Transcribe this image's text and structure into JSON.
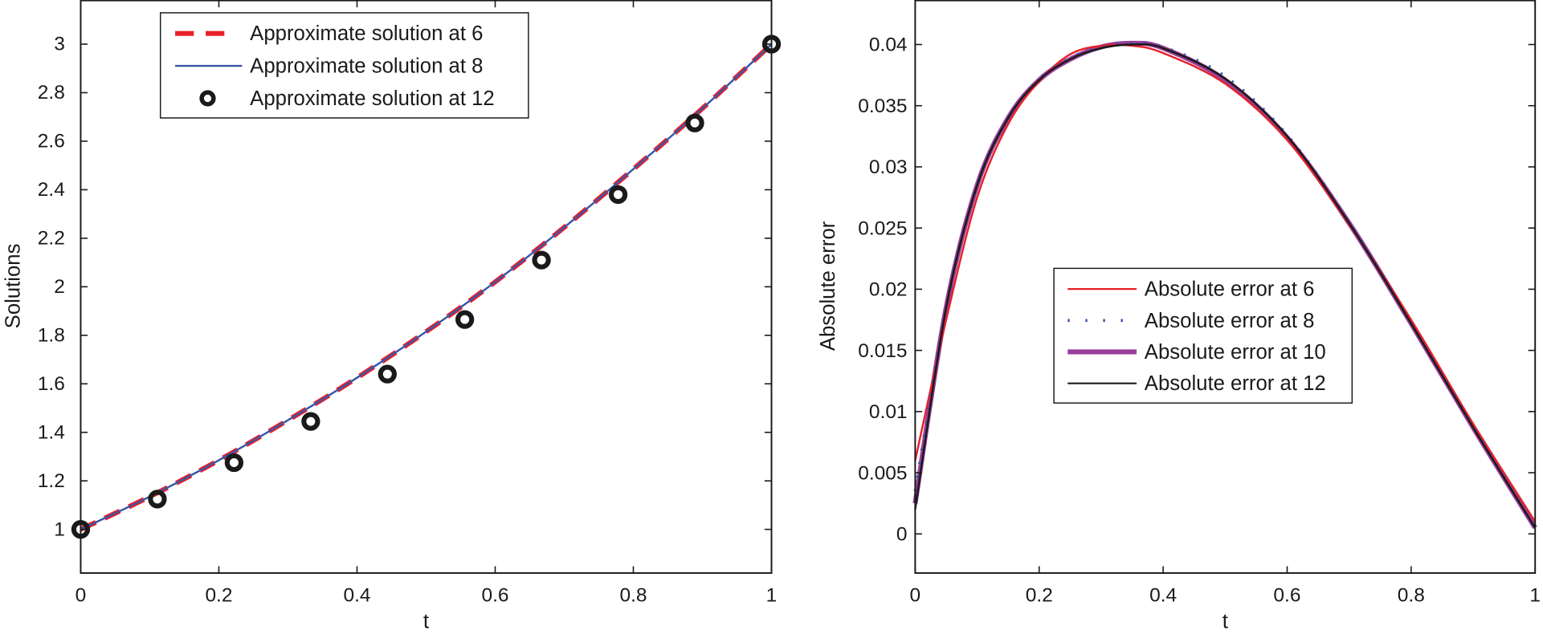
{
  "chart_data": [
    {
      "type": "line",
      "title": "",
      "xlabel": "t",
      "ylabel": "Solutions",
      "xlim": [
        0,
        1
      ],
      "ylim": [
        0.82,
        3.18
      ],
      "grid": false,
      "legend_position": "upper-left-inside",
      "x_ticks": [
        "0",
        "0.2",
        "0.4",
        "0.6",
        "0.8",
        "1"
      ],
      "y_ticks": [
        "1",
        "1.2",
        "1.4",
        "1.6",
        "1.8",
        "2",
        "2.2",
        "2.4",
        "2.6",
        "2.8",
        "3"
      ],
      "legend": [
        "Approximate solution at 6",
        "Approximate solution at 8",
        "Approximate solution at 12"
      ],
      "series": [
        {
          "name": "Approximate solution at 6",
          "style": "dashed",
          "color": "#e8202a",
          "x": [
            0,
            0.1,
            0.2,
            0.3,
            0.4,
            0.5,
            0.6,
            0.7,
            0.8,
            0.9,
            1.0
          ],
          "values": [
            1.0,
            1.135,
            1.285,
            1.45,
            1.625,
            1.815,
            2.02,
            2.245,
            2.485,
            2.735,
            3.0
          ]
        },
        {
          "name": "Approximate solution at 8",
          "style": "solid",
          "color": "#3a56a8",
          "x": [
            0,
            0.1,
            0.2,
            0.3,
            0.4,
            0.5,
            0.6,
            0.7,
            0.8,
            0.9,
            1.0
          ],
          "values": [
            1.0,
            1.135,
            1.285,
            1.45,
            1.625,
            1.815,
            2.02,
            2.245,
            2.485,
            2.735,
            3.0
          ]
        },
        {
          "name": "Approximate solution at 12",
          "style": "marker-circle",
          "color": "#1a1a1a",
          "x": [
            0,
            0.111,
            0.222,
            0.333,
            0.444,
            0.556,
            0.667,
            0.778,
            0.889,
            1.0
          ],
          "values": [
            1.0,
            1.125,
            1.275,
            1.445,
            1.64,
            1.865,
            2.11,
            2.38,
            2.675,
            3.0
          ]
        }
      ]
    },
    {
      "type": "line",
      "title": "",
      "xlabel": "t",
      "ylabel": "Absolute error",
      "xlim": [
        0,
        1
      ],
      "ylim": [
        -0.0032,
        0.0436
      ],
      "grid": false,
      "legend_position": "center-inside",
      "x_ticks": [
        "0",
        "0.2",
        "0.4",
        "0.6",
        "0.8",
        "1"
      ],
      "y_ticks": [
        "0",
        "0.005",
        "0.01",
        "0.015",
        "0.02",
        "0.025",
        "0.03",
        "0.035",
        "0.04"
      ],
      "legend": [
        "Absolute error at 6",
        "Absolute error at 8",
        "Absolute error at 10",
        "Absolute error at 12"
      ],
      "series": [
        {
          "name": "Absolute error at 6",
          "style": "solid",
          "color": "#e8202a",
          "x": [
            0,
            0.05,
            0.1,
            0.15,
            0.2,
            0.25,
            0.3,
            0.35,
            0.4,
            0.5,
            0.6,
            0.7,
            0.8,
            0.9,
            1.0
          ],
          "values": [
            0.006,
            0.0175,
            0.0275,
            0.0335,
            0.037,
            0.0392,
            0.0399,
            0.0399,
            0.0393,
            0.0368,
            0.0322,
            0.0253,
            0.0175,
            0.009,
            0.001
          ]
        },
        {
          "name": "Absolute error at 8",
          "style": "dotted",
          "color": "#3a56a8",
          "x": [
            0,
            0.05,
            0.1,
            0.15,
            0.2,
            0.25,
            0.3,
            0.35,
            0.4,
            0.5,
            0.6,
            0.7,
            0.8,
            0.9,
            1.0
          ],
          "values": [
            0.0035,
            0.0185,
            0.0285,
            0.034,
            0.0372,
            0.0389,
            0.0398,
            0.0401,
            0.0398,
            0.0374,
            0.0326,
            0.0255,
            0.0172,
            0.0088,
            0.0005
          ]
        },
        {
          "name": "Absolute error at 10",
          "style": "solid-thick",
          "color": "#9b3d9b",
          "x": [
            0,
            0.05,
            0.1,
            0.15,
            0.2,
            0.25,
            0.3,
            0.35,
            0.4,
            0.5,
            0.6,
            0.7,
            0.8,
            0.9,
            1.0
          ],
          "values": [
            0.0025,
            0.0185,
            0.0285,
            0.034,
            0.0371,
            0.0388,
            0.0398,
            0.0401,
            0.0397,
            0.0371,
            0.0324,
            0.0254,
            0.0172,
            0.0087,
            0.0005
          ]
        },
        {
          "name": "Absolute error at 12",
          "style": "solid",
          "color": "#1a1a1a",
          "x": [
            0,
            0.05,
            0.1,
            0.15,
            0.2,
            0.25,
            0.3,
            0.35,
            0.4,
            0.5,
            0.6,
            0.7,
            0.8,
            0.9,
            1.0
          ],
          "values": [
            0.002,
            0.0185,
            0.0285,
            0.034,
            0.0371,
            0.0388,
            0.0397,
            0.04,
            0.0397,
            0.0372,
            0.0325,
            0.0254,
            0.0172,
            0.0087,
            0.0005
          ]
        }
      ]
    }
  ],
  "left_plot": {
    "xlabel": "t",
    "ylabel": "Solutions",
    "x_ticks": [
      "0",
      "0.2",
      "0.4",
      "0.6",
      "0.8",
      "1"
    ],
    "y_ticks": [
      "1",
      "1.2",
      "1.4",
      "1.6",
      "1.8",
      "2",
      "2.2",
      "2.4",
      "2.6",
      "2.8",
      "3"
    ],
    "legend": [
      {
        "label": "Approximate solution at 6",
        "color": "#e8202a"
      },
      {
        "label": "Approximate solution at 8",
        "color": "#3a56a8"
      },
      {
        "label": "Approximate solution at 12",
        "color": "#1a1a1a"
      }
    ]
  },
  "right_plot": {
    "xlabel": "t",
    "ylabel": "Absolute error",
    "x_ticks": [
      "0",
      "0.2",
      "0.4",
      "0.6",
      "0.8",
      "1"
    ],
    "y_ticks": [
      "0",
      "0.005",
      "0.01",
      "0.015",
      "0.02",
      "0.025",
      "0.03",
      "0.035",
      "0.04"
    ],
    "legend": [
      {
        "label": "Absolute error at 6",
        "color": "#e8202a"
      },
      {
        "label": "Absolute error at 8",
        "color": "#3a56a8"
      },
      {
        "label": "Absolute error at 10",
        "color": "#9b3d9b"
      },
      {
        "label": "Absolute error at 12",
        "color": "#1a1a1a"
      }
    ]
  }
}
